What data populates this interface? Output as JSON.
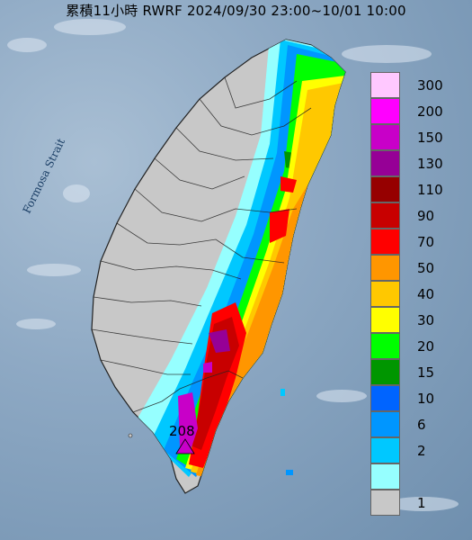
{
  "title": "累積11小時 RWRF 2024/09/30 23:00~10/01 10:00",
  "strait_label": "Formosa Strait",
  "max_value_label": "208",
  "legend": [
    {
      "label": "300",
      "color": "#ffc8ff"
    },
    {
      "label": "200",
      "color": "#ff00ff"
    },
    {
      "label": "150",
      "color": "#c800c8"
    },
    {
      "label": "130",
      "color": "#960096"
    },
    {
      "label": "110",
      "color": "#960000"
    },
    {
      "label": "90",
      "color": "#c80000"
    },
    {
      "label": "70",
      "color": "#ff0000"
    },
    {
      "label": "50",
      "color": "#ff9600"
    },
    {
      "label": "40",
      "color": "#ffc800"
    },
    {
      "label": "30",
      "color": "#ffff00"
    },
    {
      "label": "20",
      "color": "#00ff00"
    },
    {
      "label": "15",
      "color": "#009600"
    },
    {
      "label": "10",
      "color": "#0064ff"
    },
    {
      "label": "6",
      "color": "#0096ff"
    },
    {
      "label": "2",
      "color": "#00c8ff"
    },
    {
      "label": "",
      "color": "#96ffff"
    },
    {
      "label": "1",
      "color": "#c8c8c8"
    }
  ]
}
